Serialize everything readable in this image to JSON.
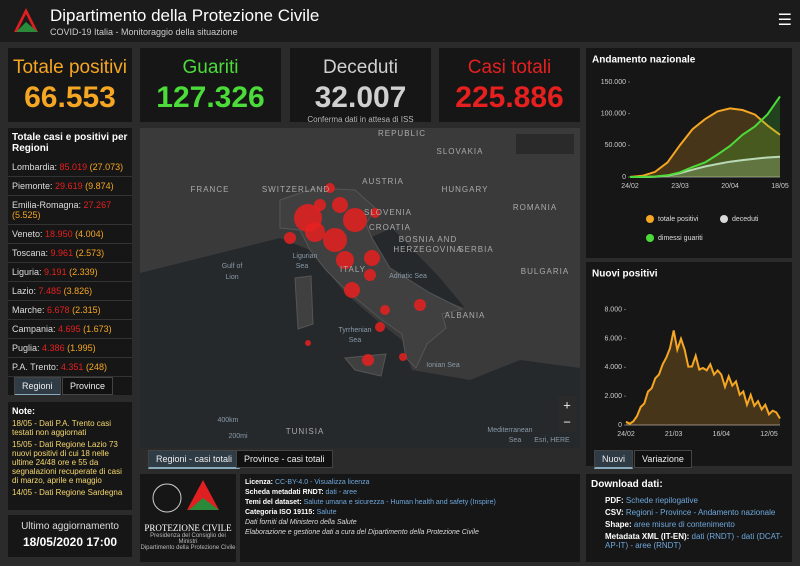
{
  "header": {
    "title": "Dipartimento della Protezione Civile",
    "subtitle": "COVID-19 Italia - Monitoraggio della situazione"
  },
  "kpis": [
    {
      "label": "Totale positivi",
      "value": "66.553",
      "color": "#f5a623"
    },
    {
      "label": "Guariti",
      "value": "127.326",
      "color": "#4cdc3a"
    },
    {
      "label": "Deceduti",
      "value": "32.007",
      "color": "#d0d0d0",
      "note": "Conferma dati in attesa di ISS"
    },
    {
      "label": "Casi totali",
      "value": "225.886",
      "color": "#e6201f"
    }
  ],
  "regions": {
    "title": "Totale casi e positivi per Regioni",
    "rows": [
      {
        "name": "Lombardia:",
        "total": "85.019",
        "positive": "(27.073)"
      },
      {
        "name": "Piemonte:",
        "total": "29.619",
        "positive": "(9.874)"
      },
      {
        "name": "Emilia-Romagna:",
        "total": "27.267",
        "positive": "(5.525)"
      },
      {
        "name": "Veneto:",
        "total": "18.950",
        "positive": "(4.004)"
      },
      {
        "name": "Toscana:",
        "total": "9.961",
        "positive": "(2.573)"
      },
      {
        "name": "Liguria:",
        "total": "9.191",
        "positive": "(2.339)"
      },
      {
        "name": "Lazio:",
        "total": "7.485",
        "positive": "(3.826)"
      },
      {
        "name": "Marche:",
        "total": "6.678",
        "positive": "(2.315)"
      },
      {
        "name": "Campania:",
        "total": "4.695",
        "positive": "(1.673)"
      },
      {
        "name": "Puglia:",
        "total": "4.386",
        "positive": "(1.995)"
      },
      {
        "name": "P.A. Trento:",
        "total": "4.351",
        "positive": "(248)"
      }
    ],
    "tabs": [
      "Regioni",
      "Province"
    ]
  },
  "notes": {
    "title": "Note:",
    "items": [
      "18/05 - Dati P.A. Trento casi testati non aggiornati",
      "15/05 - Dati Regione Lazio 73 nuovi positivi di cui 18 nelle ultime 24/48 ore e 55 da segnalazioni recuperate di casi di marzo, aprile e maggio",
      "14/05 - Dati Regione Sardegna"
    ]
  },
  "update": {
    "label": "Ultimo aggiornamento",
    "value": "18/05/2020 17:00"
  },
  "map": {
    "labels": [
      "REPUBLIC",
      "SLOVAKIA",
      "AUSTRIA",
      "HUNGARY",
      "FRANCE",
      "SWITZERLAND",
      "SLOVENIA",
      "CROATIA",
      "ROMANIA",
      "BOSNIA AND",
      "HERZEGOVINA",
      "SERBIA",
      "Ligurian",
      "Sea",
      "ITALY",
      "Adriatic Sea",
      "BULGARIA",
      "Gulf of",
      "Lion",
      "ALBANIA",
      "Tyrrhenian",
      "Sea",
      "Ionian Sea",
      "TUNISIA",
      "Mediterranean",
      "Sea",
      "400km",
      "200mi",
      "Esri, HERE"
    ],
    "zoom": [
      "+",
      "−"
    ],
    "tabs": [
      "Regioni - casi totali",
      "Province - casi totali"
    ]
  },
  "logo": {
    "name": "PROTEZIONE CIVILE",
    "line1": "Presidenza del Consiglio dei Ministri",
    "line2": "Dipartimento della Protezione Civile"
  },
  "license": {
    "lines": [
      {
        "label": "Licenza:",
        "text": "CC-BY-4.0 - Visualizza licenza"
      },
      {
        "label": "Scheda metadati RNDT:",
        "text": "dati - aree"
      },
      {
        "label": "Temi del dataset:",
        "text": "Salute umana e sicurezza - Human health and safety (Inspire)"
      },
      {
        "label": "Categoria ISO 19115:",
        "text": "Salute"
      }
    ],
    "credits": [
      "Dati forniti dal Ministero della Salute",
      "Elaborazione e gestione dati a cura del Dipartimento della Protezione Civile"
    ]
  },
  "download": {
    "title": "Download dati:",
    "items": [
      {
        "label": "PDF:",
        "text": "Schede riepilogative"
      },
      {
        "label": "CSV:",
        "text": "Regioni - Province - Andamento nazionale"
      },
      {
        "label": "Shape:",
        "text": "aree misure di contenimento"
      },
      {
        "label": "Metadata XML (IT-EN):",
        "text": "dati (RNDT) - dati (DCAT-AP-IT) - aree (RNDT)"
      }
    ]
  },
  "chart_tabs": [
    "Nuovi",
    "Variazione"
  ],
  "chart_data": [
    {
      "type": "line",
      "title": "Andamento nazionale",
      "x": [
        "24/02",
        null,
        null,
        null,
        "23/03",
        null,
        null,
        null,
        "20/04",
        null,
        null,
        null,
        "18/05"
      ],
      "series": [
        {
          "name": "totale positivi",
          "color": "#f5a623",
          "values": [
            229,
            1835,
            7985,
            23073,
            50418,
            75528,
            91246,
            103616,
            108237,
            105813,
            98467,
            81266,
            66553
          ]
        },
        {
          "name": "deceduti",
          "color": "#d9d9d9",
          "values": [
            7,
            52,
            463,
            2158,
            6077,
            11591,
            16523,
            20465,
            24114,
            26644,
            28884,
            30739,
            32007
          ]
        },
        {
          "name": "dimessi guariti",
          "color": "#4cdc3a",
          "values": [
            1,
            149,
            724,
            2749,
            7432,
            15729,
            22837,
            35435,
            48877,
            66624,
            79914,
            99023,
            127326
          ]
        }
      ],
      "ylim": [
        0,
        150000
      ],
      "yticks": [
        0,
        {
          "value": 50000,
          "label": "50.000"
        },
        {
          "value": 100000,
          "label": "100.000"
        },
        {
          "value": 150000,
          "label": "150.000"
        }
      ],
      "grid": false
    },
    {
      "type": "line",
      "title": "Nuovi positivi",
      "x": [
        "24/02",
        null,
        null,
        null,
        null,
        null,
        null,
        null,
        null,
        null,
        null,
        null,
        null,
        "21/03",
        null,
        null,
        null,
        null,
        null,
        null,
        null,
        null,
        null,
        null,
        null,
        null,
        "16/04",
        null,
        null,
        null,
        null,
        null,
        null,
        null,
        null,
        null,
        null,
        null,
        null,
        "12/05",
        null,
        null,
        null
      ],
      "values": [
        221,
        93,
        250,
        620,
        1247,
        1492,
        2313,
        2547,
        3233,
        3497,
        4207,
        4670,
        5322,
        6557,
        5217,
        5974,
        5210,
        4050,
        4053,
        4805,
        3836,
        3951,
        3786,
        4204,
        3493,
        3786,
        3491,
        2646,
        3370,
        2729,
        3021,
        2091,
        2324,
        1401,
        2086,
        1327,
        1651,
        1083,
        1402,
        744,
        992,
        875,
        451
      ],
      "color": "#f5a623",
      "ylim": [
        0,
        8800
      ],
      "yticks": [
        0,
        {
          "value": 2000,
          "label": "2.000"
        },
        {
          "value": 4000,
          "label": "4.000"
        },
        {
          "value": 6000,
          "label": "6.000"
        },
        {
          "value": 8000,
          "label": "8.000"
        }
      ],
      "grid": false
    }
  ]
}
